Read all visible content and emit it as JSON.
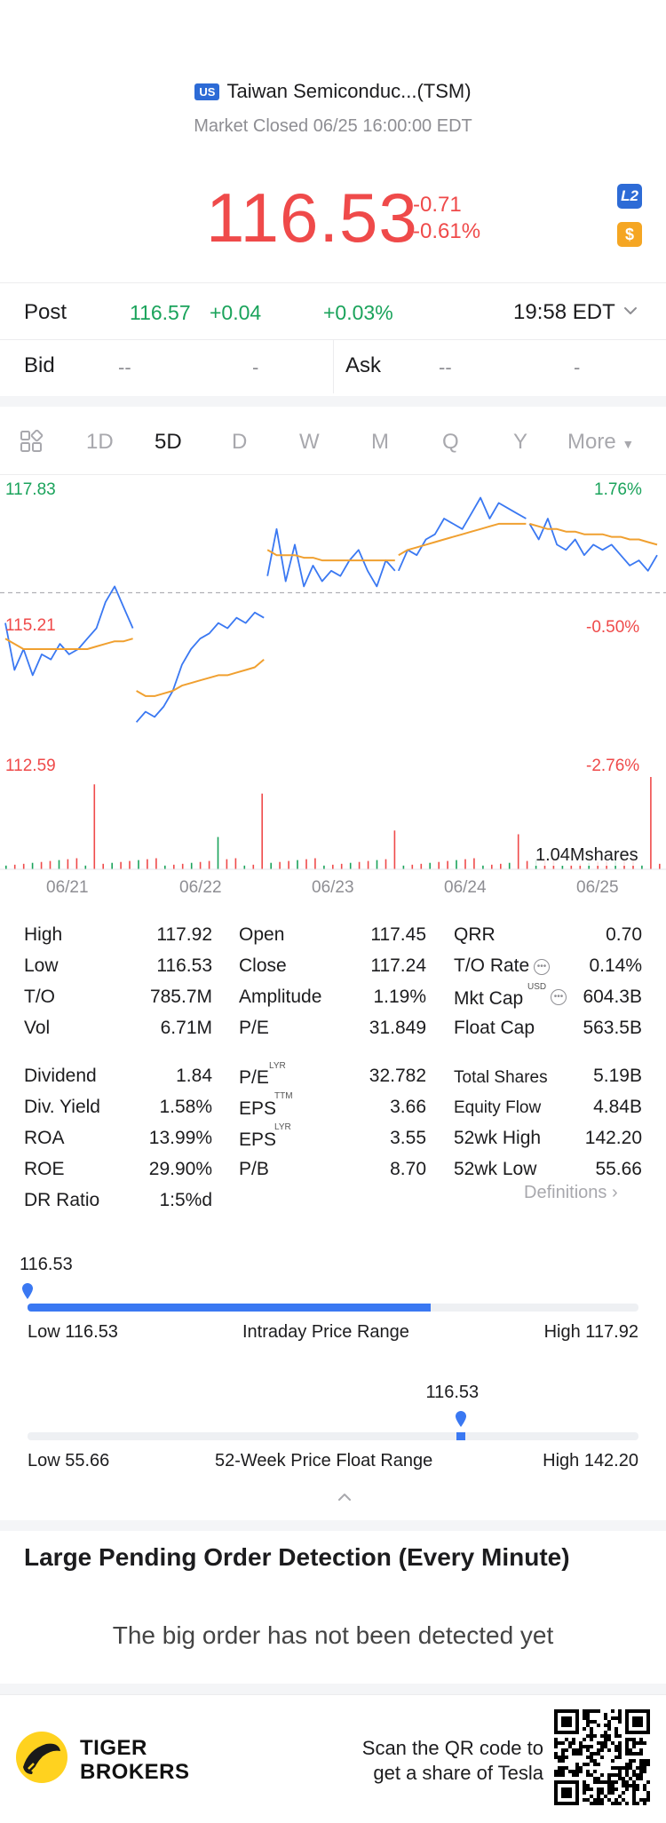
{
  "header": {
    "flag": "US",
    "title": "Taiwan Semiconduc...(TSM)",
    "status": "Market Closed 06/25 16:00:00 EDT",
    "price": "116.53",
    "change": "-0.71",
    "change_pct": "-0.61%",
    "l2_badge": "L2",
    "dollar_badge": "$",
    "colors": {
      "down": "#ef4a4a",
      "up": "#1aa35b",
      "accent": "#3a78f2"
    }
  },
  "post": {
    "label": "Post",
    "price": "116.57",
    "change": "+0.04",
    "change_pct": "+0.03%",
    "time": "19:58 EDT"
  },
  "quote": {
    "bid_label": "Bid",
    "bid_price": "--",
    "bid_size": "-",
    "ask_label": "Ask",
    "ask_price": "--",
    "ask_size": "-"
  },
  "tabs": {
    "icon": "layout-grid-icon",
    "items": [
      "1D",
      "5D",
      "D",
      "W",
      "M",
      "Q",
      "Y",
      "More"
    ],
    "active": "5D"
  },
  "chart_data": {
    "type": "line",
    "period": "5D",
    "y_high_label": "117.83",
    "y_high_pct": "1.76%",
    "y_prev_close_label": "115.21",
    "y_prev_close_pct": "-0.50%",
    "y_low_label": "112.59",
    "y_low_pct": "-2.76%",
    "ylim": [
      112.59,
      117.83
    ],
    "x_labels": [
      "06/21",
      "06/22",
      "06/23",
      "06/24",
      "06/25"
    ],
    "volume_label": "1.04Mshares",
    "series": [
      {
        "color": "#3a78f2",
        "values": [
          [
            115.2,
            114.3,
            114.7,
            114.2,
            114.6,
            114.5,
            114.8,
            114.6,
            114.7,
            114.9,
            115.1,
            115.6,
            115.9,
            115.5,
            115.1
          ],
          [
            113.3,
            113.5,
            113.4,
            113.6,
            113.9,
            114.4,
            114.7,
            114.9,
            115.0,
            115.2,
            115.1,
            115.3,
            115.2,
            115.4,
            115.3
          ],
          [
            116.1,
            117.0,
            116.0,
            116.7,
            115.9,
            116.3,
            116.0,
            116.2,
            116.1,
            116.4,
            116.6,
            116.2,
            115.9,
            116.4,
            116.2
          ],
          [
            116.2,
            116.6,
            116.5,
            116.8,
            116.9,
            117.2,
            117.1,
            117.0,
            117.3,
            117.6,
            117.2,
            117.5,
            117.4,
            117.3,
            117.2
          ],
          [
            117.1,
            116.8,
            117.2,
            116.7,
            116.6,
            116.8,
            116.5,
            116.7,
            116.6,
            116.7,
            116.5,
            116.3,
            116.4,
            116.2,
            116.5
          ]
        ]
      },
      {
        "color": "#f0a030",
        "values": [
          [
            114.9,
            114.8,
            114.7,
            114.7,
            114.7,
            114.7,
            114.7,
            114.7,
            114.7,
            114.7,
            114.75,
            114.8,
            114.85,
            114.85,
            114.9
          ],
          [
            113.9,
            113.8,
            113.8,
            113.85,
            113.9,
            114.0,
            114.05,
            114.1,
            114.15,
            114.2,
            114.2,
            114.25,
            114.3,
            114.35,
            114.5
          ],
          [
            116.6,
            116.5,
            116.5,
            116.5,
            116.45,
            116.45,
            116.4,
            116.4,
            116.4,
            116.4,
            116.4,
            116.4,
            116.4,
            116.4,
            116.4
          ],
          [
            116.5,
            116.6,
            116.65,
            116.7,
            116.75,
            116.8,
            116.85,
            116.9,
            116.95,
            117.0,
            117.05,
            117.1,
            117.1,
            117.1,
            117.1
          ],
          [
            117.1,
            117.05,
            117.0,
            117.0,
            116.95,
            116.95,
            116.9,
            116.9,
            116.9,
            116.85,
            116.85,
            116.8,
            116.8,
            116.75,
            116.7
          ]
        ]
      }
    ],
    "prev_close": 115.21,
    "dashed_line_value": 115.78
  },
  "stats": {
    "col1": [
      {
        "label": "High",
        "value": "117.92"
      },
      {
        "label": "Low",
        "value": "116.53"
      },
      {
        "label": "T/O",
        "value": "785.7M"
      },
      {
        "label": "Vol",
        "value": "6.71M"
      },
      {
        "label": "Dividend",
        "value": "1.84"
      },
      {
        "label": "Div. Yield",
        "value": "1.58%"
      },
      {
        "label": "ROA",
        "value": "13.99%"
      },
      {
        "label": "ROE",
        "value": "29.90%"
      },
      {
        "label": "DR Ratio",
        "value": "1:5%d"
      }
    ],
    "col2": [
      {
        "label": "Open",
        "value": "117.45"
      },
      {
        "label": "Close",
        "value": "117.24"
      },
      {
        "label": "Amplitude",
        "value": "1.19%"
      },
      {
        "label": "P/E",
        "value": "31.849"
      },
      {
        "label": "P/E",
        "sup": "LYR",
        "value": "32.782"
      },
      {
        "label": "EPS",
        "sup": "TTM",
        "value": "3.66"
      },
      {
        "label": "EPS",
        "sup": "LYR",
        "value": "3.55"
      },
      {
        "label": "P/B",
        "value": "8.70"
      }
    ],
    "col3": [
      {
        "label": "QRR",
        "value": "0.70"
      },
      {
        "label": "T/O Rate",
        "value": "0.14%"
      },
      {
        "label": "Mkt Cap",
        "sup": "USD",
        "value": "604.3B"
      },
      {
        "label": "Float Cap",
        "value": "563.5B"
      },
      {
        "label": "Total Shares",
        "value": "5.19B"
      },
      {
        "label": "Equity Flow",
        "value": "4.84B"
      },
      {
        "label": "52wk High",
        "value": "142.20"
      },
      {
        "label": "52wk Low",
        "value": "55.66"
      }
    ],
    "definitions": "Definitions"
  },
  "intraday_range": {
    "current": "116.53",
    "low_label": "Low 116.53",
    "title": "Intraday Price Range",
    "high_label": "High 117.92",
    "fill_fraction": 0.66,
    "marker_fraction": 0.0
  },
  "week52_range": {
    "current": "116.53",
    "low_label": "Low 55.66",
    "title": "52-Week Price Float Range",
    "high_label": "High 142.20",
    "marker_fraction": 0.71
  },
  "pending_orders": {
    "title": "Large Pending Order Detection (Every Minute)",
    "message": "The big order has not been detected yet"
  },
  "footer": {
    "brand_line1": "TIGER",
    "brand_line2": "BROKERS",
    "scan_line1": "Scan the QR code to",
    "scan_line2": "get a share of Tesla"
  }
}
